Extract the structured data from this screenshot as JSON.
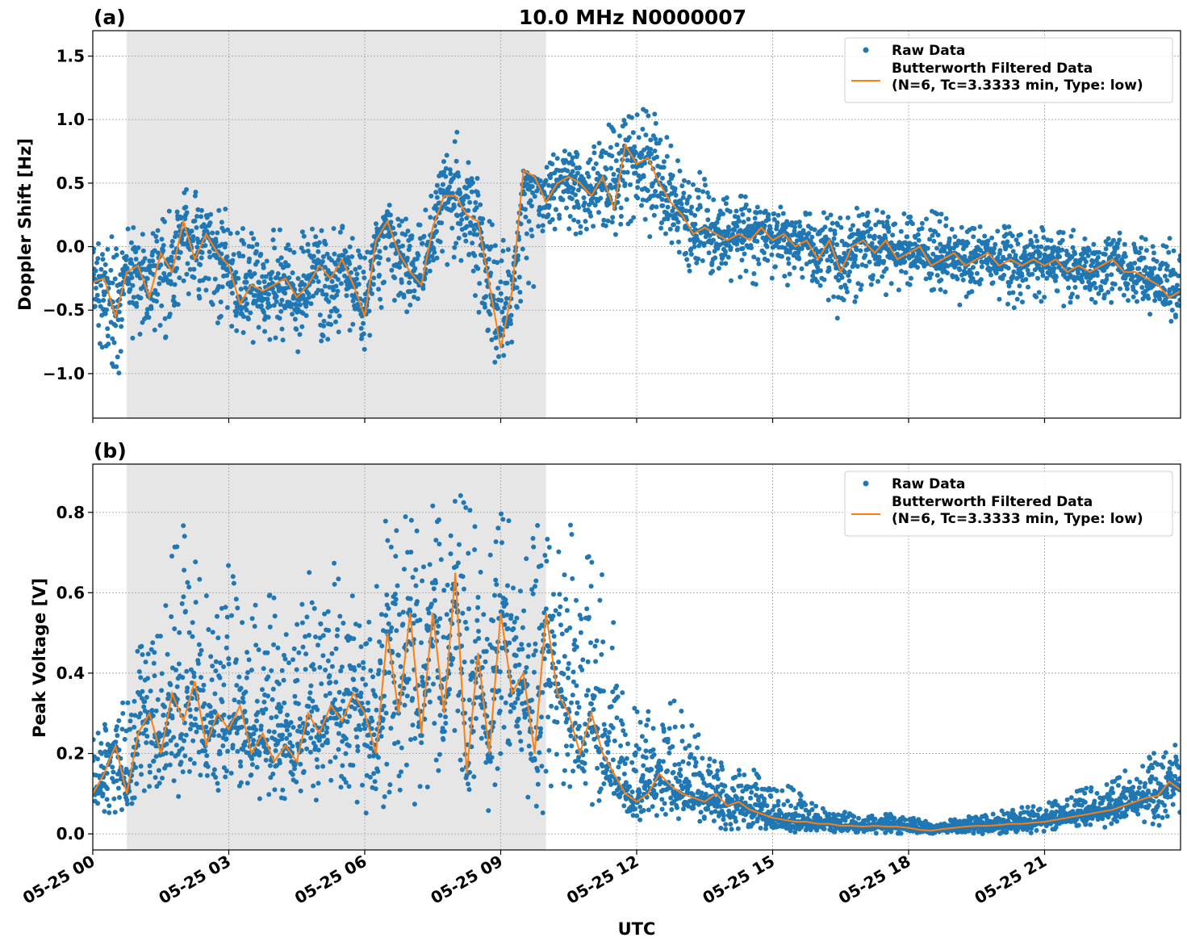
{
  "figure": {
    "title": "10.0 MHz N0000007",
    "xlabel": "UTC",
    "colors": {
      "raw": "#1f77b4",
      "filtered": "#ff7f0e",
      "shade": "#e6e6e6",
      "grid": "#b0b0b0"
    },
    "x_ticks": [
      {
        "hour": 0,
        "label": "05-25 00"
      },
      {
        "hour": 3,
        "label": "05-25 03"
      },
      {
        "hour": 6,
        "label": "05-25 06"
      },
      {
        "hour": 9,
        "label": "05-25 09"
      },
      {
        "hour": 12,
        "label": "05-25 12"
      },
      {
        "hour": 15,
        "label": "05-25 15"
      },
      {
        "hour": 18,
        "label": "05-25 18"
      },
      {
        "hour": 21,
        "label": "05-25 21"
      }
    ],
    "legend": {
      "raw_label": "Raw Data",
      "filtered_label_line1": "Butterworth Filtered Data",
      "filtered_label_line2": "(N=6, Tc=3.3333 min, Type: low)"
    }
  },
  "chart_data": [
    {
      "panel": "(a)",
      "type": "scatter",
      "title": "10.0 MHz N0000007",
      "ylabel": "Doppler Shift [Hz]",
      "xlabel": "",
      "xlim_hours": [
        0,
        24
      ],
      "ylim": [
        -1.35,
        1.7
      ],
      "y_ticks": [
        {
          "v": -1.0,
          "label": "−1.0"
        },
        {
          "v": -0.5,
          "label": "−0.5"
        },
        {
          "v": 0.0,
          "label": "0.0"
        },
        {
          "v": 0.5,
          "label": "0.5"
        },
        {
          "v": 1.0,
          "label": "1.0"
        },
        {
          "v": 1.5,
          "label": "1.5"
        }
      ],
      "shaded_region_hours": [
        0.75,
        10.0
      ],
      "grid": true,
      "legend_position": "upper right",
      "series": [
        {
          "name": "Butterworth Filtered Data",
          "x_hours": [
            0,
            0.25,
            0.5,
            0.75,
            1,
            1.25,
            1.5,
            1.75,
            2,
            2.25,
            2.5,
            2.75,
            3,
            3.25,
            3.5,
            3.75,
            4,
            4.25,
            4.5,
            4.75,
            5,
            5.25,
            5.5,
            5.75,
            6,
            6.25,
            6.5,
            6.75,
            7,
            7.25,
            7.5,
            7.75,
            8,
            8.25,
            8.5,
            8.75,
            9,
            9.25,
            9.5,
            9.75,
            10,
            10.25,
            10.5,
            10.75,
            11,
            11.25,
            11.5,
            11.75,
            12,
            12.25,
            12.5,
            12.75,
            13,
            13.25,
            13.5,
            13.75,
            14,
            14.25,
            14.5,
            14.75,
            15,
            15.25,
            15.5,
            15.75,
            16,
            16.25,
            16.5,
            16.75,
            17,
            17.25,
            17.5,
            17.75,
            18,
            18.25,
            18.5,
            18.75,
            19,
            19.25,
            19.5,
            19.75,
            20,
            20.25,
            20.5,
            20.75,
            21,
            21.25,
            21.5,
            21.75,
            22,
            22.25,
            22.5,
            22.75,
            23,
            23.25,
            23.5,
            23.75,
            24
          ],
          "y": [
            -0.28,
            -0.25,
            -0.55,
            -0.2,
            -0.15,
            -0.4,
            -0.05,
            -0.2,
            0.2,
            -0.1,
            0.1,
            -0.05,
            -0.15,
            -0.45,
            -0.3,
            -0.35,
            -0.3,
            -0.25,
            -0.4,
            -0.3,
            -0.15,
            -0.25,
            -0.1,
            -0.3,
            -0.55,
            0.05,
            0.2,
            -0.05,
            -0.2,
            -0.3,
            0.15,
            0.4,
            0.4,
            0.25,
            0.2,
            -0.3,
            -0.8,
            -0.35,
            0.6,
            0.55,
            0.35,
            0.5,
            0.55,
            0.5,
            0.4,
            0.55,
            0.3,
            0.8,
            0.65,
            0.7,
            0.5,
            0.35,
            0.25,
            0.1,
            0.15,
            0.1,
            0.05,
            0.1,
            0.05,
            0.15,
            0.05,
            0.1,
            0.0,
            0.05,
            -0.1,
            0.05,
            -0.2,
            0.0,
            0.05,
            -0.05,
            0.05,
            -0.1,
            -0.05,
            0.0,
            -0.15,
            -0.1,
            -0.05,
            -0.15,
            -0.1,
            -0.05,
            -0.15,
            -0.1,
            -0.15,
            -0.1,
            -0.15,
            -0.1,
            -0.2,
            -0.15,
            -0.2,
            -0.15,
            -0.1,
            -0.2,
            -0.2,
            -0.25,
            -0.3,
            -0.4,
            -0.35
          ]
        },
        {
          "name": "Raw Data",
          "scatter_envelope_hours": [
            0,
            0.5,
            1,
            1.5,
            2,
            2.5,
            3,
            3.5,
            4,
            4.5,
            5,
            5.5,
            6,
            6.5,
            7,
            7.5,
            8,
            8.5,
            9,
            9.5,
            10,
            10.5,
            11,
            11.5,
            12,
            12.5,
            13,
            13.5,
            14,
            14.5,
            15,
            15.5,
            16,
            16.5,
            17,
            17.5,
            18,
            18.5,
            19,
            19.5,
            20,
            20.5,
            21,
            21.5,
            22,
            22.5,
            23,
            23.5,
            24
          ],
          "upper": [
            0.1,
            0.1,
            0.2,
            0.3,
            0.55,
            0.35,
            0.3,
            0.2,
            0.2,
            0.2,
            0.25,
            0.25,
            0.05,
            0.35,
            0.25,
            0.5,
            0.95,
            0.75,
            0.1,
            0.3,
            0.7,
            0.8,
            0.9,
            1.1,
            1.2,
            1.1,
            0.8,
            0.6,
            0.45,
            0.4,
            0.35,
            0.35,
            0.3,
            0.35,
            0.35,
            0.3,
            0.3,
            0.3,
            0.25,
            0.2,
            0.2,
            0.2,
            0.15,
            0.15,
            0.15,
            0.15,
            0.1,
            0.1,
            0.05
          ],
          "lower": [
            -0.8,
            -1.1,
            -0.7,
            -0.85,
            -0.4,
            -0.5,
            -0.7,
            -0.8,
            -0.85,
            -0.9,
            -0.75,
            -0.7,
            -1.0,
            -0.5,
            -0.65,
            -0.2,
            -0.2,
            -0.6,
            -1.05,
            -0.65,
            0.0,
            0.05,
            0.15,
            0.0,
            0.1,
            0.0,
            -0.25,
            -0.3,
            -0.3,
            -0.3,
            -0.35,
            -0.35,
            -0.35,
            -0.6,
            -0.35,
            -0.4,
            -0.4,
            -0.45,
            -0.5,
            -0.45,
            -0.45,
            -0.5,
            -0.5,
            -0.5,
            -0.5,
            -0.45,
            -0.5,
            -0.6,
            -0.7
          ]
        }
      ]
    },
    {
      "panel": "(b)",
      "type": "scatter",
      "title": "",
      "ylabel": "Peak Voltage [V]",
      "xlabel": "UTC",
      "xlim_hours": [
        0,
        24
      ],
      "ylim": [
        -0.04,
        0.92
      ],
      "y_ticks": [
        {
          "v": 0.0,
          "label": "0.0"
        },
        {
          "v": 0.2,
          "label": "0.2"
        },
        {
          "v": 0.4,
          "label": "0.4"
        },
        {
          "v": 0.6,
          "label": "0.6"
        },
        {
          "v": 0.8,
          "label": "0.8"
        }
      ],
      "shaded_region_hours": [
        0.75,
        10.0
      ],
      "grid": true,
      "legend_position": "upper right",
      "series": [
        {
          "name": "Butterworth Filtered Data",
          "x_hours": [
            0,
            0.25,
            0.5,
            0.75,
            1,
            1.25,
            1.5,
            1.75,
            2,
            2.25,
            2.5,
            2.75,
            3,
            3.25,
            3.5,
            3.75,
            4,
            4.25,
            4.5,
            4.75,
            5,
            5.25,
            5.5,
            5.75,
            6,
            6.25,
            6.5,
            6.75,
            7,
            7.25,
            7.5,
            7.75,
            8,
            8.25,
            8.5,
            8.75,
            9,
            9.25,
            9.5,
            9.75,
            10,
            10.25,
            10.5,
            10.75,
            11,
            11.25,
            11.5,
            11.75,
            12,
            12.25,
            12.5,
            12.75,
            13,
            13.25,
            13.5,
            13.75,
            14,
            14.25,
            14.5,
            14.75,
            15,
            15.25,
            15.5,
            15.75,
            16,
            16.25,
            16.5,
            16.75,
            17,
            17.25,
            17.5,
            17.75,
            18,
            18.25,
            18.5,
            18.75,
            19,
            19.25,
            19.5,
            19.75,
            20,
            20.25,
            20.5,
            20.75,
            21,
            21.25,
            21.5,
            21.75,
            22,
            22.25,
            22.5,
            22.75,
            23,
            23.25,
            23.5,
            23.75,
            24
          ],
          "y": [
            0.1,
            0.15,
            0.22,
            0.1,
            0.25,
            0.3,
            0.2,
            0.35,
            0.28,
            0.38,
            0.22,
            0.3,
            0.26,
            0.32,
            0.2,
            0.25,
            0.18,
            0.22,
            0.18,
            0.3,
            0.25,
            0.32,
            0.28,
            0.35,
            0.3,
            0.2,
            0.5,
            0.3,
            0.55,
            0.25,
            0.55,
            0.3,
            0.65,
            0.15,
            0.45,
            0.2,
            0.55,
            0.35,
            0.4,
            0.2,
            0.55,
            0.35,
            0.3,
            0.2,
            0.3,
            0.2,
            0.15,
            0.1,
            0.08,
            0.1,
            0.15,
            0.12,
            0.1,
            0.09,
            0.08,
            0.1,
            0.07,
            0.08,
            0.06,
            0.05,
            0.04,
            0.035,
            0.03,
            0.03,
            0.025,
            0.025,
            0.02,
            0.02,
            0.018,
            0.02,
            0.018,
            0.018,
            0.015,
            0.01,
            0.008,
            0.012,
            0.015,
            0.018,
            0.02,
            0.02,
            0.022,
            0.025,
            0.025,
            0.028,
            0.03,
            0.035,
            0.04,
            0.045,
            0.05,
            0.055,
            0.06,
            0.07,
            0.08,
            0.09,
            0.095,
            0.13,
            0.11
          ]
        },
        {
          "name": "Raw Data",
          "scatter_envelope_hours": [
            0,
            0.5,
            1,
            1.5,
            2,
            2.5,
            3,
            3.5,
            4,
            4.5,
            5,
            5.5,
            6,
            6.5,
            7,
            7.5,
            8,
            8.5,
            9,
            9.5,
            10,
            10.5,
            11,
            11.5,
            12,
            12.5,
            13,
            13.5,
            14,
            14.5,
            15,
            15.5,
            16,
            16.5,
            17,
            17.5,
            18,
            18.5,
            19,
            19.5,
            20,
            20.5,
            21,
            21.5,
            22,
            22.5,
            23,
            23.5,
            24
          ],
          "upper": [
            0.25,
            0.35,
            0.5,
            0.65,
            0.85,
            0.7,
            0.72,
            0.65,
            0.6,
            0.6,
            0.8,
            0.7,
            0.55,
            0.85,
            0.82,
            0.85,
            0.88,
            0.8,
            0.86,
            0.78,
            0.84,
            0.78,
            0.72,
            0.6,
            0.35,
            0.3,
            0.38,
            0.2,
            0.2,
            0.18,
            0.15,
            0.12,
            0.08,
            0.06,
            0.05,
            0.05,
            0.05,
            0.03,
            0.04,
            0.05,
            0.06,
            0.07,
            0.08,
            0.1,
            0.12,
            0.15,
            0.18,
            0.22,
            0.26
          ],
          "lower": [
            0.05,
            0.05,
            0.05,
            0.06,
            0.07,
            0.06,
            0.06,
            0.07,
            0.08,
            0.07,
            0.06,
            0.06,
            0.05,
            0.06,
            0.05,
            0.05,
            0.05,
            0.05,
            0.04,
            0.05,
            0.05,
            0.04,
            0.05,
            0.04,
            0.03,
            0.02,
            0.02,
            0.01,
            0.01,
            0.005,
            0.0,
            0.0,
            0.0,
            0.0,
            0.0,
            0.0,
            0.0,
            0.0,
            0.0,
            0.0,
            0.0,
            0.0,
            0.0,
            0.005,
            0.01,
            0.015,
            0.02,
            0.02,
            0.03
          ]
        }
      ]
    }
  ]
}
